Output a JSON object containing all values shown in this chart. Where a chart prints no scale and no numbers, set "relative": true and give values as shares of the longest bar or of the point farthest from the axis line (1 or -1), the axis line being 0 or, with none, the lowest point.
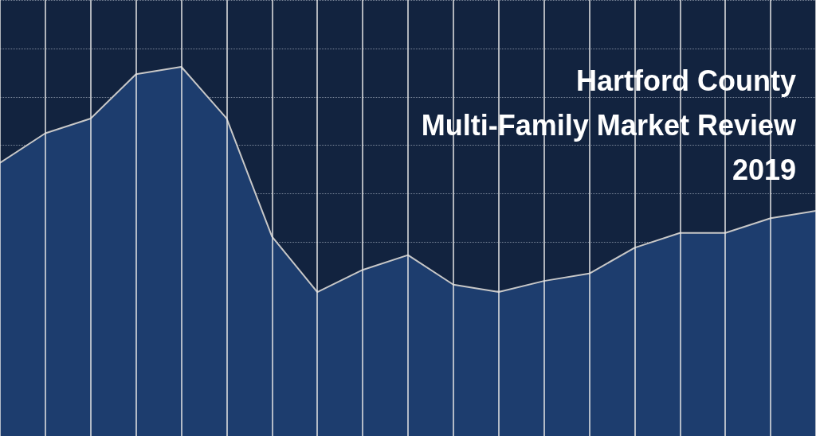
{
  "chart_data": {
    "type": "area",
    "title": "Hartford County\nMulti-Family Market Review\n2019",
    "relative": true,
    "categories": [
      null,
      null,
      null,
      null,
      null,
      null,
      null,
      null,
      null,
      null,
      null,
      null,
      null,
      null,
      null,
      null,
      null,
      null,
      null
    ],
    "series": [
      {
        "color": "#1d3d6e",
        "values": [
          0.74,
          0.82,
          0.86,
          0.98,
          1,
          0.86,
          0.54,
          0.39,
          0.45,
          0.49,
          0.41,
          0.39,
          0.42,
          0.44,
          0.51,
          0.55,
          0.55,
          0.59,
          0.61
        ]
      }
    ],
    "grid": true,
    "marker": "none",
    "line_style": "solid",
    "tick_labels": false
  }
}
